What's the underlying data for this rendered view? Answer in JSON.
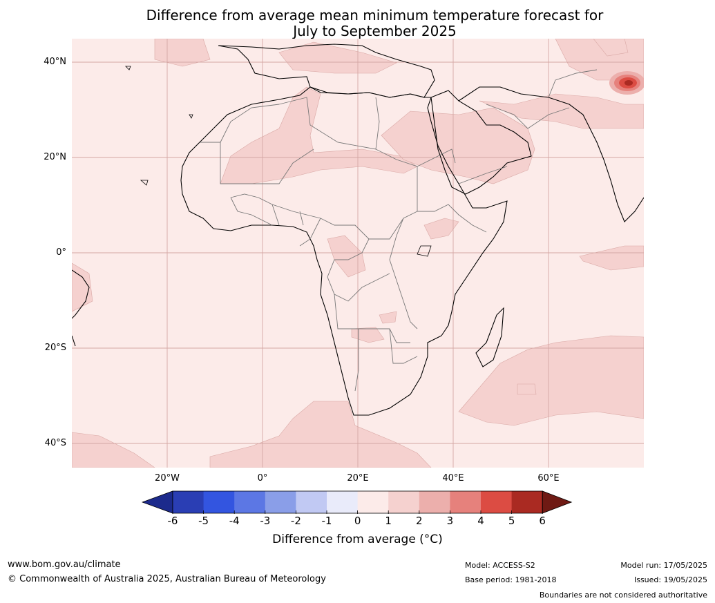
{
  "title_line1": "Difference from average mean minimum temperature forecast for",
  "title_line2": "July to September 2025",
  "lat_labels": [
    "40°N",
    "20°N",
    "0°",
    "20°S",
    "40°S"
  ],
  "lon_labels": [
    "20°W",
    "0°",
    "20°E",
    "40°E",
    "60°E"
  ],
  "colorbar": {
    "ticks": [
      "-6",
      "-5",
      "-4",
      "-3",
      "-2",
      "-1",
      "0",
      "1",
      "2",
      "3",
      "4",
      "5",
      "6"
    ],
    "colors": [
      "#1c2a8c",
      "#2a3eb4",
      "#3355e0",
      "#5c77e4",
      "#8a9ee8",
      "#c1c9f3",
      "#e9ebfa",
      "#fcebe9",
      "#f5d1cf",
      "#ecafac",
      "#e6817c",
      "#dc4c43",
      "#aa2a22",
      "#6f1a14"
    ],
    "label": "Difference from average (°C)"
  },
  "footer": {
    "url": "www.bom.gov.au/climate",
    "copyright": "© Commonwealth of Australia 2025, Australian Bureau of Meteorology",
    "model": "Model: ACCESS-S2",
    "base_period": "Base period: 1981-2018",
    "model_run": "Model run: 17/05/2025",
    "issued": "Issued: 19/05/2025",
    "disclaimer": "Boundaries are not considered authoritative"
  }
}
